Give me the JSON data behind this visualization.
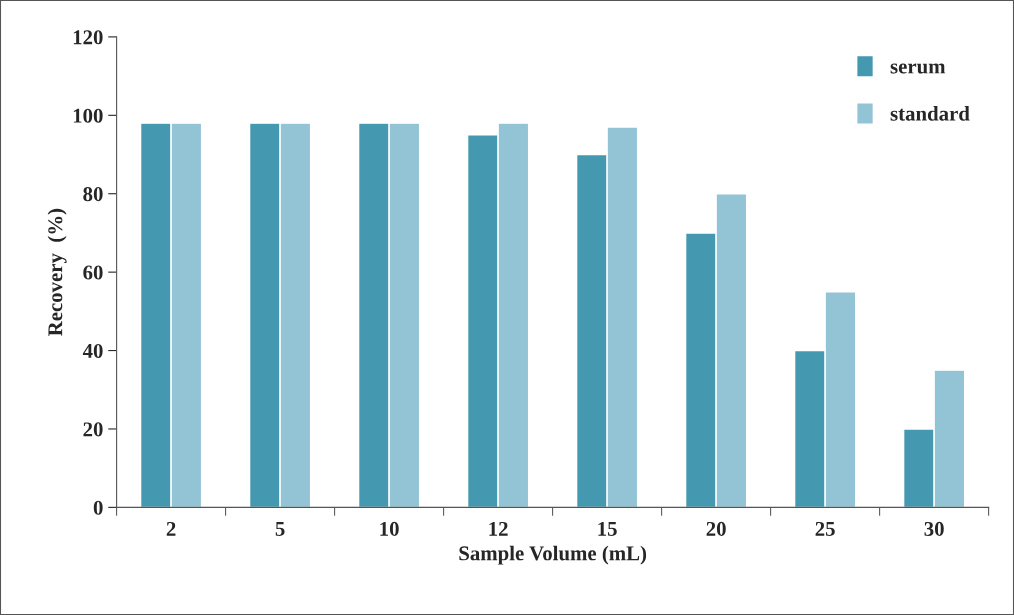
{
  "chart_data": {
    "type": "bar",
    "xlabel": "Sample Volume (mL)",
    "ylabel": "Recovery  (%)",
    "categories": [
      "2",
      "5",
      "10",
      "12",
      "15",
      "20",
      "25",
      "30"
    ],
    "series": [
      {
        "name": "serum",
        "color": "#4499b0",
        "values": [
          98,
          98,
          98,
          95,
          90,
          70,
          40,
          20
        ]
      },
      {
        "name": "standard",
        "color": "#93c4d5",
        "values": [
          98,
          98,
          98,
          98,
          97,
          80,
          55,
          35
        ]
      }
    ],
    "ylim": [
      0,
      120
    ],
    "yticks": [
      0,
      20,
      40,
      60,
      80,
      100,
      120
    ],
    "grid": false,
    "legend": "top right"
  }
}
